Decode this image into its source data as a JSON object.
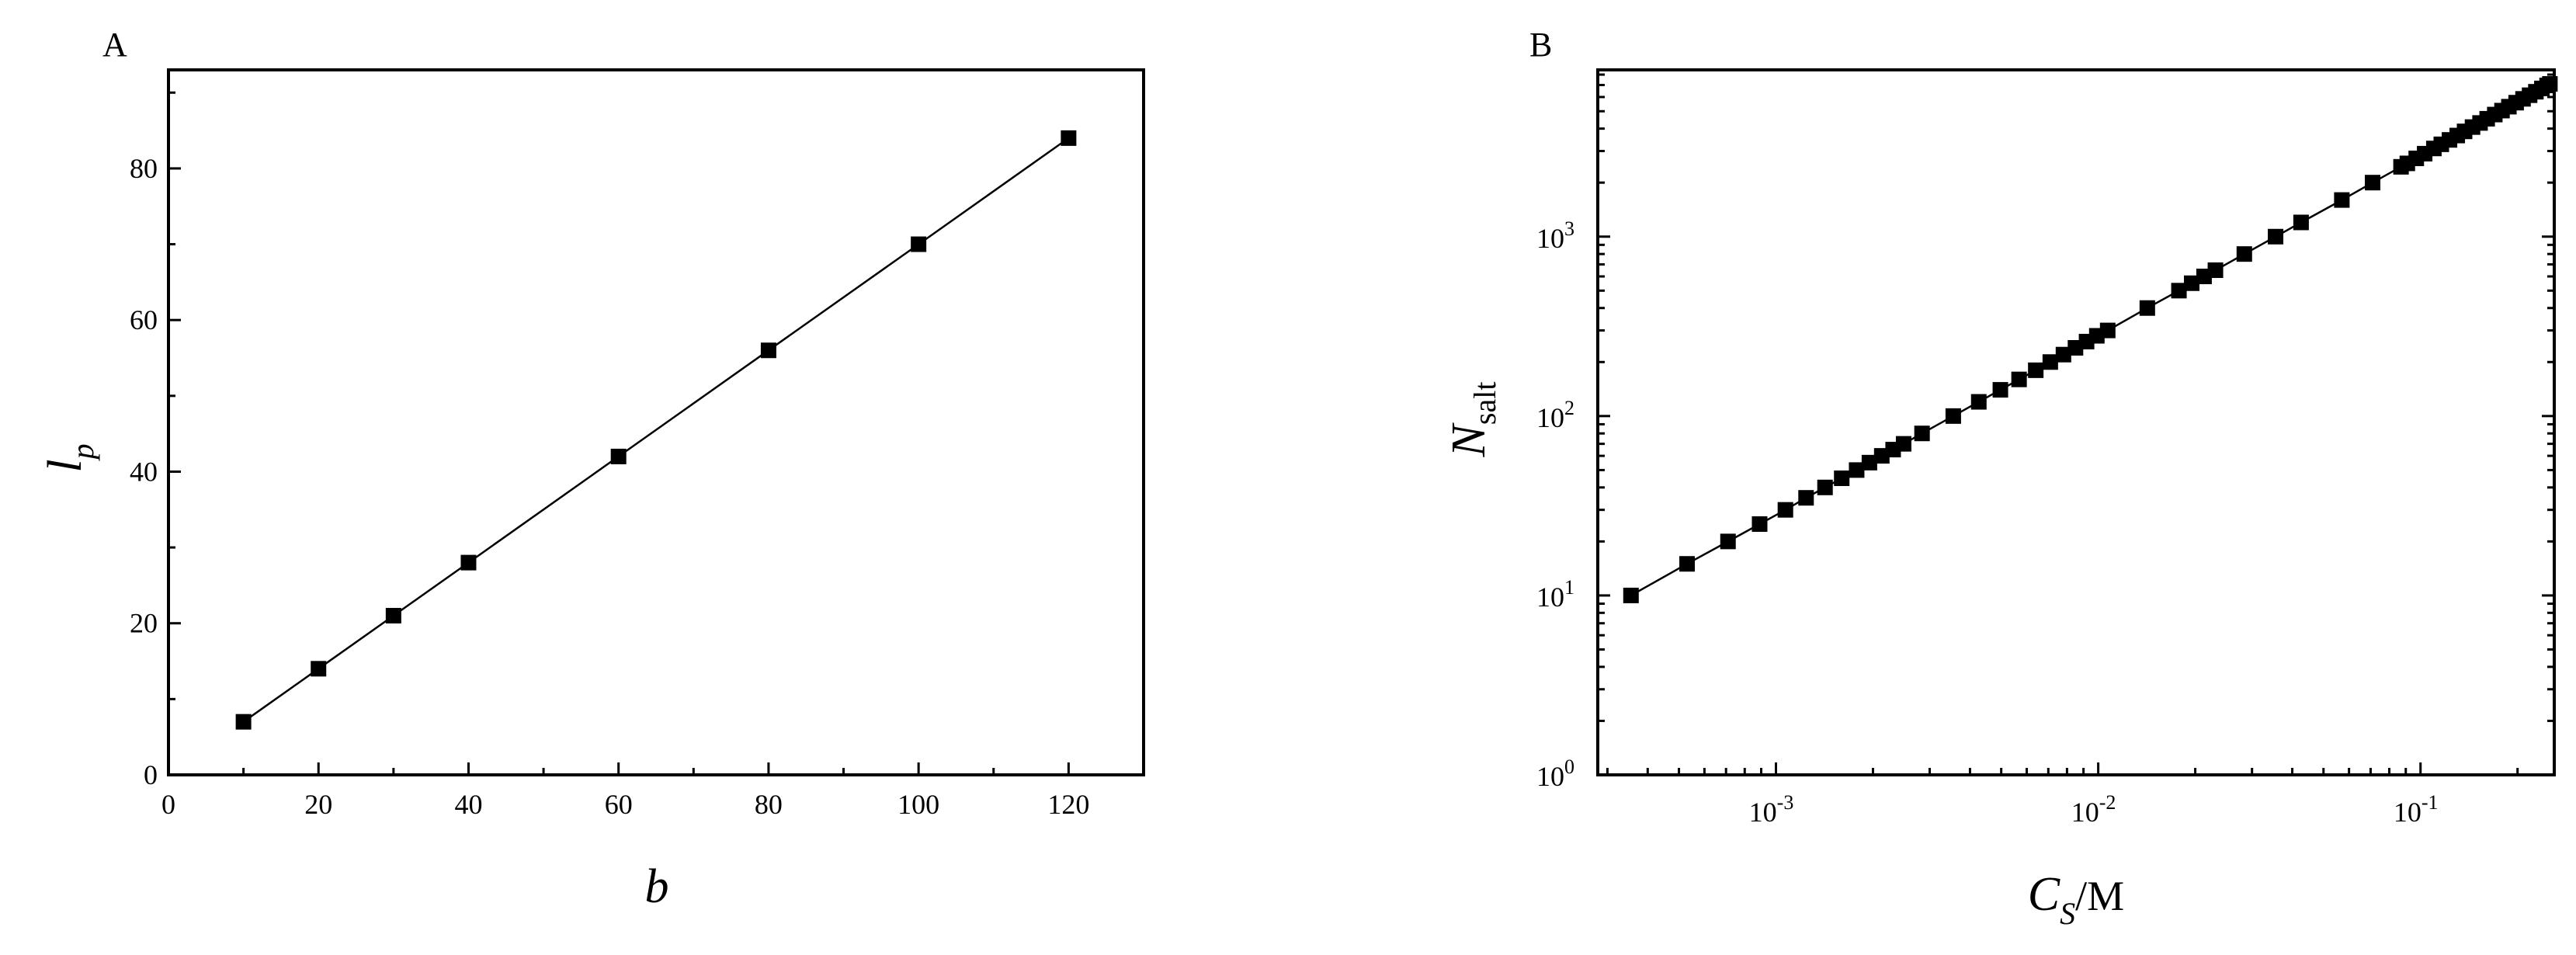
{
  "chart_data": [
    {
      "type": "scatter",
      "panel_label": "A",
      "xlabel": "b",
      "ylabel": "l",
      "ylabel_sub": "p",
      "xlim": [
        0,
        130
      ],
      "ylim": [
        0,
        93
      ],
      "xticks": [
        0,
        20,
        40,
        60,
        80,
        100,
        120
      ],
      "yticks": [
        0,
        20,
        40,
        60,
        80
      ],
      "grid": false,
      "series": [
        {
          "marker": "square",
          "line": true,
          "x": [
            10,
            20,
            30,
            40,
            60,
            80,
            100,
            120
          ],
          "y": [
            7,
            14,
            21,
            28,
            42,
            56,
            70,
            84
          ]
        }
      ]
    },
    {
      "type": "scatter",
      "panel_label": "B",
      "xlabel": "C",
      "xlabel_sub": "S",
      "xlabel_unit": "/M",
      "ylabel": "N",
      "ylabel_sub": "salt",
      "xscale": "log",
      "yscale": "log",
      "xlim": [
        0.00028,
        0.26
      ],
      "ylim": [
        1,
        8500
      ],
      "xticks": [
        {
          "value": 0.001,
          "base": "10",
          "exp": "-3"
        },
        {
          "value": 0.01,
          "base": "10",
          "exp": "-2"
        },
        {
          "value": 0.1,
          "base": "10",
          "exp": "-1"
        }
      ],
      "yticks": [
        {
          "value": 1,
          "base": "10",
          "exp": "0"
        },
        {
          "value": 10,
          "base": "10",
          "exp": "1"
        },
        {
          "value": 100,
          "base": "10",
          "exp": "2"
        },
        {
          "value": 1000,
          "base": "10",
          "exp": "3"
        }
      ],
      "grid": false,
      "series": [
        {
          "marker": "square",
          "line": true,
          "x": [
            0.000355,
            0.00053,
            0.00071,
            0.00089,
            0.00107,
            0.00124,
            0.00142,
            0.0016,
            0.00178,
            0.00195,
            0.00213,
            0.00231,
            0.00249,
            0.00284,
            0.00355,
            0.00426,
            0.00497,
            0.00568,
            0.0064,
            0.0071,
            0.0078,
            0.0085,
            0.0092,
            0.0099,
            0.0107,
            0.0142,
            0.0178,
            0.0195,
            0.0213,
            0.0231,
            0.0284,
            0.0355,
            0.0426,
            0.057,
            0.071,
            0.087,
            0.091,
            0.097,
            0.103,
            0.11,
            0.116,
            0.123,
            0.13,
            0.137,
            0.145,
            0.153,
            0.161,
            0.17,
            0.179,
            0.188,
            0.198,
            0.208,
            0.218,
            0.228,
            0.238,
            0.247,
            0.252
          ],
          "y": [
            10,
            15,
            20,
            25,
            30,
            35,
            40,
            45,
            50,
            55,
            60,
            65,
            70,
            80,
            100,
            120,
            140,
            160,
            180,
            200,
            220,
            240,
            260,
            280,
            300,
            400,
            500,
            550,
            600,
            650,
            800,
            1000,
            1200,
            1600,
            2000,
            2450,
            2560,
            2730,
            2900,
            3100,
            3270,
            3460,
            3660,
            3860,
            4080,
            4300,
            4540,
            4790,
            5040,
            5300,
            5580,
            5860,
            6140,
            6420,
            6700,
            6960,
            7100
          ]
        }
      ]
    }
  ]
}
